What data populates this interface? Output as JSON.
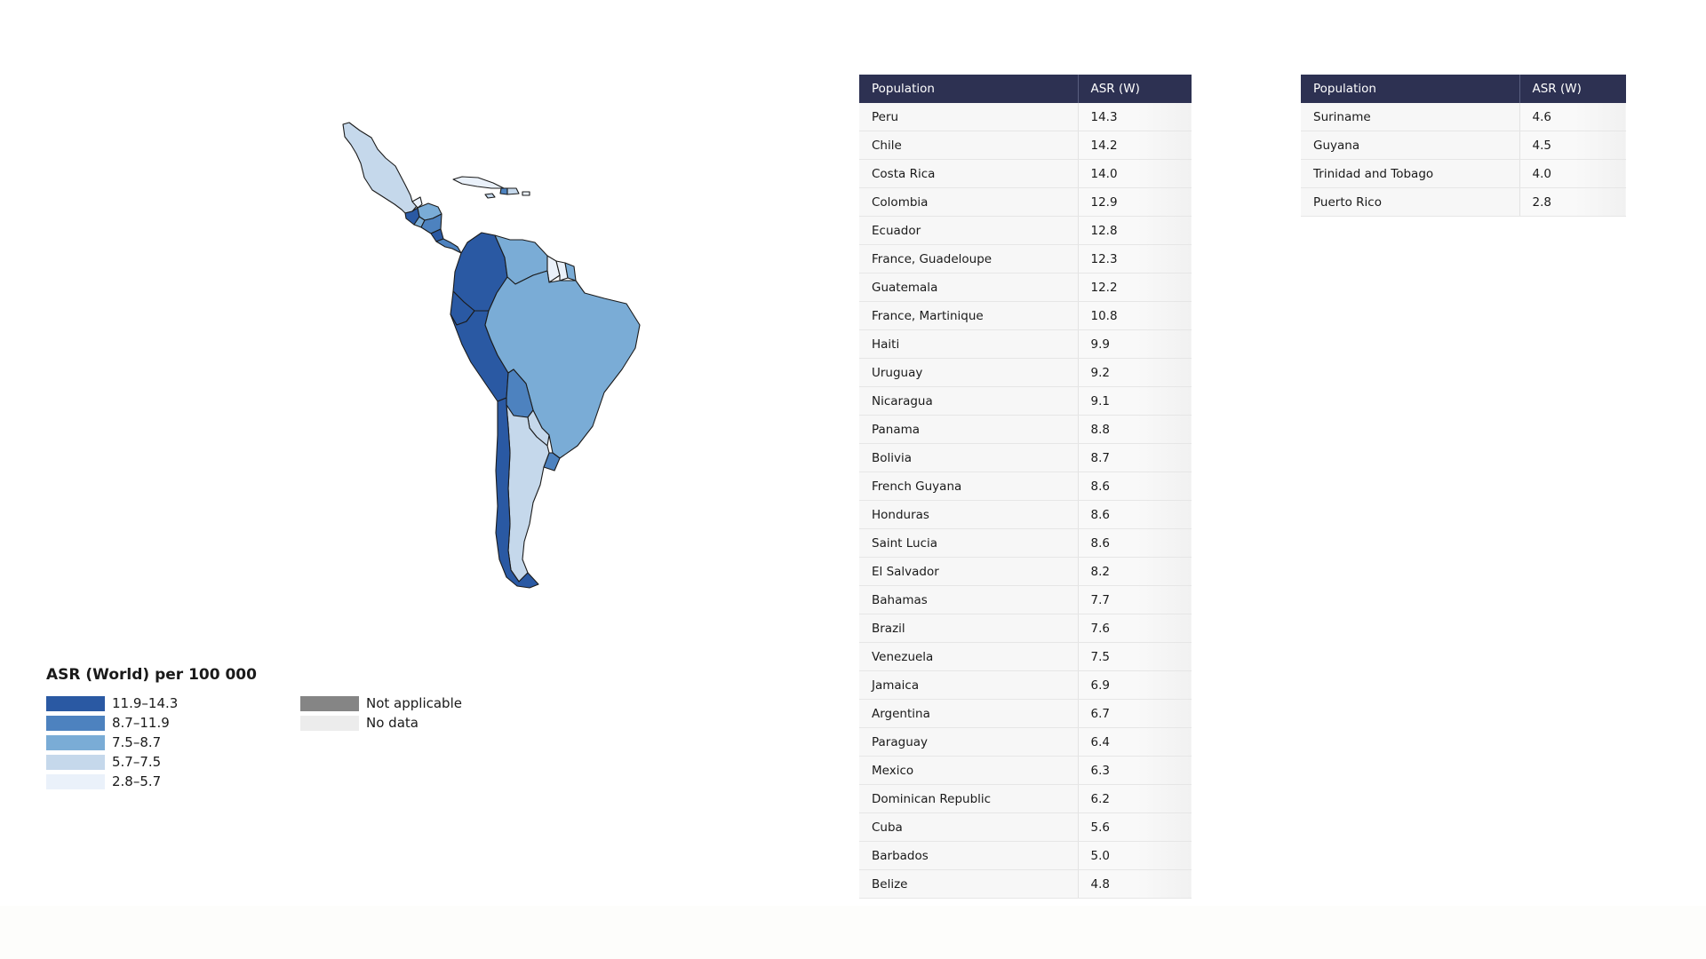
{
  "map": {
    "colors": {
      "band1": "#2a59a3",
      "band2": "#4d82bf",
      "band3": "#7aacd6",
      "band4": "#c5d8eb",
      "band5": "#eaf1fa",
      "not_applicable": "#858585",
      "no_data": "#ececec"
    },
    "regions": [
      {
        "name": "Mexico",
        "value": 6.3
      },
      {
        "name": "Guatemala",
        "value": 12.2
      },
      {
        "name": "Belize",
        "value": 4.8
      },
      {
        "name": "Honduras",
        "value": 8.6
      },
      {
        "name": "El Salvador",
        "value": 8.2
      },
      {
        "name": "Nicaragua",
        "value": 9.1
      },
      {
        "name": "Costa Rica",
        "value": 14.0
      },
      {
        "name": "Panama",
        "value": 8.8
      },
      {
        "name": "Colombia",
        "value": 12.9
      },
      {
        "name": "Venezuela",
        "value": 7.5
      },
      {
        "name": "Guyana",
        "value": 4.5
      },
      {
        "name": "Suriname",
        "value": 4.6
      },
      {
        "name": "French Guyana",
        "value": 8.6
      },
      {
        "name": "Ecuador",
        "value": 12.8
      },
      {
        "name": "Peru",
        "value": 14.3
      },
      {
        "name": "Brazil",
        "value": 7.6
      },
      {
        "name": "Bolivia",
        "value": 8.7
      },
      {
        "name": "Paraguay",
        "value": 6.4
      },
      {
        "name": "Chile",
        "value": 14.2
      },
      {
        "name": "Argentina",
        "value": 6.7
      },
      {
        "name": "Uruguay",
        "value": 9.2
      },
      {
        "name": "Cuba",
        "value": 5.6
      },
      {
        "name": "Haiti",
        "value": 9.9
      },
      {
        "name": "Dominican Republic",
        "value": 6.2
      },
      {
        "name": "Jamaica",
        "value": 6.9
      },
      {
        "name": "Puerto Rico",
        "value": 2.8
      }
    ]
  },
  "legend": {
    "title": "ASR (World) per 100 000",
    "items": [
      {
        "label": "11.9–14.3",
        "color": "#2a59a3"
      },
      {
        "label": "8.7–11.9",
        "color": "#4d82bf"
      },
      {
        "label": "7.5–8.7",
        "color": "#7aacd6"
      },
      {
        "label": "5.7–7.5",
        "color": "#c5d8eb"
      },
      {
        "label": "2.8–5.7",
        "color": "#eaf1fa"
      }
    ],
    "extra": [
      {
        "label": "Not applicable",
        "color": "#858585"
      },
      {
        "label": "No data",
        "color": "#ececec"
      }
    ]
  },
  "table_main": {
    "headers": [
      "Population",
      "ASR (W)"
    ],
    "rows": [
      [
        "Peru",
        "14.3"
      ],
      [
        "Chile",
        "14.2"
      ],
      [
        "Costa Rica",
        "14.0"
      ],
      [
        "Colombia",
        "12.9"
      ],
      [
        "Ecuador",
        "12.8"
      ],
      [
        "France, Guadeloupe",
        "12.3"
      ],
      [
        "Guatemala",
        "12.2"
      ],
      [
        "France, Martinique",
        "10.8"
      ],
      [
        "Haiti",
        "9.9"
      ],
      [
        "Uruguay",
        "9.2"
      ],
      [
        "Nicaragua",
        "9.1"
      ],
      [
        "Panama",
        "8.8"
      ],
      [
        "Bolivia",
        "8.7"
      ],
      [
        "French Guyana",
        "8.6"
      ],
      [
        "Honduras",
        "8.6"
      ],
      [
        "Saint Lucia",
        "8.6"
      ],
      [
        "El Salvador",
        "8.2"
      ],
      [
        "Bahamas",
        "7.7"
      ],
      [
        "Brazil",
        "7.6"
      ],
      [
        "Venezuela",
        "7.5"
      ],
      [
        "Jamaica",
        "6.9"
      ],
      [
        "Argentina",
        "6.7"
      ],
      [
        "Paraguay",
        "6.4"
      ],
      [
        "Mexico",
        "6.3"
      ],
      [
        "Dominican Republic",
        "6.2"
      ],
      [
        "Cuba",
        "5.6"
      ],
      [
        "Barbados",
        "5.0"
      ],
      [
        "Belize",
        "4.8"
      ]
    ]
  },
  "table_side": {
    "headers": [
      "Population",
      "ASR (W)"
    ],
    "rows": [
      [
        "Suriname",
        "4.6"
      ],
      [
        "Guyana",
        "4.5"
      ],
      [
        "Trinidad and Tobago",
        "4.0"
      ],
      [
        "Puerto Rico",
        "2.8"
      ]
    ]
  }
}
